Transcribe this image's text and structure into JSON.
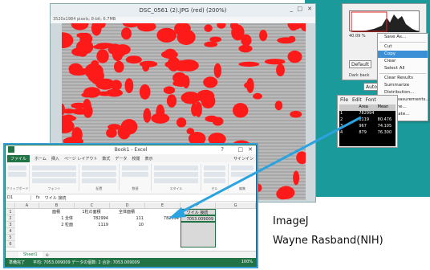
{
  "image_window": {
    "title": "DSC_0561 (2).JPG (red) (200%)",
    "info": "3520x1984 pixels; 8-bit; 6.7MB",
    "min_label": "_",
    "max_label": "□",
    "close_label": "✕"
  },
  "histogram_window": {
    "value_label": "40.09 %",
    "default_button": "Default",
    "dark_bg_label": "Dark back",
    "auto_button": "Auto"
  },
  "context_menu": {
    "items": [
      "Save As...",
      "Cut",
      "Copy",
      "Clear",
      "Select All",
      "Clear Results",
      "Summarize",
      "Distribution...",
      "Set Measurements...",
      "Rename...",
      "Duplicate..."
    ],
    "highlighted": "Copy"
  },
  "results_window": {
    "menu": [
      "File",
      "Edit",
      "Font"
    ],
    "header": [
      "",
      "Area",
      "Mean"
    ],
    "rows": [
      [
        "1",
        "782994",
        ""
      ],
      [
        "2",
        "1119",
        "80.476"
      ],
      [
        "3",
        "967",
        "74.105"
      ],
      [
        "4",
        "879",
        "76.300"
      ]
    ]
  },
  "excel_window": {
    "title": "Book1 - Excel",
    "help_label": "?",
    "restore_label": "□",
    "close_label": "✕",
    "tabs": [
      "ファイル",
      "ホーム",
      "挿入",
      "ページ レイアウト",
      "数式",
      "データ",
      "校閲",
      "表示"
    ],
    "signin": "サインイン",
    "ribbon_groups": [
      "クリップボード",
      "フォント",
      "配置",
      "数値",
      "スタイル",
      "セル",
      "編集"
    ],
    "name_box": "D1",
    "formula": "ワイル 接続",
    "columns": [
      "A",
      "B",
      "C",
      "D",
      "E",
      "F",
      "G"
    ],
    "header_row": [
      "",
      "面積",
      "1粒の面積",
      "全体面積",
      "ワイル 接続"
    ],
    "rows": [
      [
        "1 全体",
        "782994",
        "111",
        "782994",
        "7053.009009"
      ],
      [
        "2 粒面",
        "1119",
        "10",
        "",
        ""
      ]
    ],
    "sheet_tab": "Sheet1",
    "status": "準備完了",
    "status_stats": "平均: 7053.009009  データの個数: 2  合計: 7053.009009",
    "zoom": "100%"
  },
  "caption": {
    "line1": "ImageJ",
    "line2": "Wayne Rasband(NIH)"
  },
  "colors": {
    "teal": "#1a9a9a",
    "excel_green": "#217346",
    "highlight": "#3d8fd6",
    "red_overlay": "#ff1a1a",
    "arrow": "#2aa3e0"
  }
}
